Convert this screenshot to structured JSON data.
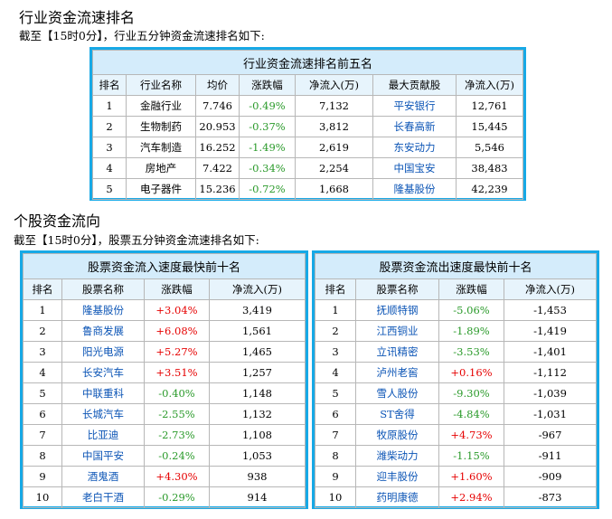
{
  "industry_section": {
    "title": "行业资金流速排名",
    "subtitle": "截至【15时0分】，行业五分钟资金流速排名如下:",
    "table": {
      "caption": "行业资金流速排名前五名",
      "headers": [
        "排名",
        "行业名称",
        "均价",
        "涨跌幅",
        "净流入(万)",
        "最大贡献股",
        "净流入(万)"
      ],
      "rows": [
        {
          "rank": "1",
          "name": "金融行业",
          "price": "7.746",
          "change": "-0.49%",
          "inflow": "7,132",
          "stock": "平安银行",
          "stock_inflow": "12,761"
        },
        {
          "rank": "2",
          "name": "生物制药",
          "price": "20.953",
          "change": "-0.37%",
          "inflow": "3,812",
          "stock": "长春高新",
          "stock_inflow": "15,445"
        },
        {
          "rank": "3",
          "name": "汽车制造",
          "price": "16.252",
          "change": "-1.49%",
          "inflow": "2,619",
          "stock": "东安动力",
          "stock_inflow": "5,546"
        },
        {
          "rank": "4",
          "name": "房地产",
          "price": "7.422",
          "change": "-0.34%",
          "inflow": "2,254",
          "stock": "中国宝安",
          "stock_inflow": "38,483"
        },
        {
          "rank": "5",
          "name": "电子器件",
          "price": "15.236",
          "change": "-0.72%",
          "inflow": "1,668",
          "stock": "隆基股份",
          "stock_inflow": "42,239"
        }
      ]
    }
  },
  "stock_section": {
    "title": "个股资金流向",
    "subtitle": "截至【15时0分】，股票五分钟资金流速排名如下:",
    "inflow_table": {
      "caption": "股票资金流入速度最快前十名",
      "headers": [
        "排名",
        "股票名称",
        "涨跌幅",
        "净流入(万)"
      ],
      "rows": [
        {
          "rank": "1",
          "name": "隆基股份",
          "change": "+3.04%",
          "inflow": "3,419"
        },
        {
          "rank": "2",
          "name": "鲁商发展",
          "change": "+6.08%",
          "inflow": "1,561"
        },
        {
          "rank": "3",
          "name": "阳光电源",
          "change": "+5.27%",
          "inflow": "1,465"
        },
        {
          "rank": "4",
          "name": "长安汽车",
          "change": "+3.51%",
          "inflow": "1,257"
        },
        {
          "rank": "5",
          "name": "中联重科",
          "change": "-0.40%",
          "inflow": "1,148"
        },
        {
          "rank": "6",
          "name": "长城汽车",
          "change": "-2.55%",
          "inflow": "1,132"
        },
        {
          "rank": "7",
          "name": "比亚迪",
          "change": "-2.73%",
          "inflow": "1,108"
        },
        {
          "rank": "8",
          "name": "中国平安",
          "change": "-0.24%",
          "inflow": "1,053"
        },
        {
          "rank": "9",
          "name": "酒鬼酒",
          "change": "+4.30%",
          "inflow": "938"
        },
        {
          "rank": "10",
          "name": "老白干酒",
          "change": "-0.29%",
          "inflow": "914"
        }
      ]
    },
    "outflow_table": {
      "caption": "股票资金流出速度最快前十名",
      "headers": [
        "排名",
        "股票名称",
        "涨跌幅",
        "净流入(万)"
      ],
      "rows": [
        {
          "rank": "1",
          "name": "抚顺特钢",
          "change": "-5.06%",
          "inflow": "-1,453"
        },
        {
          "rank": "2",
          "name": "江西铜业",
          "change": "-1.89%",
          "inflow": "-1,419"
        },
        {
          "rank": "3",
          "name": "立讯精密",
          "change": "-3.53%",
          "inflow": "-1,401"
        },
        {
          "rank": "4",
          "name": "泸州老窖",
          "change": "+0.16%",
          "inflow": "-1,112"
        },
        {
          "rank": "5",
          "name": "雪人股份",
          "change": "-9.30%",
          "inflow": "-1,039"
        },
        {
          "rank": "6",
          "name": "ST舍得",
          "change": "-4.84%",
          "inflow": "-1,031"
        },
        {
          "rank": "7",
          "name": "牧原股份",
          "change": "+4.73%",
          "inflow": "-967"
        },
        {
          "rank": "8",
          "name": "潍柴动力",
          "change": "-1.15%",
          "inflow": "-911"
        },
        {
          "rank": "9",
          "name": "迎丰股份",
          "change": "+1.60%",
          "inflow": "-909"
        },
        {
          "rank": "10",
          "name": "药明康德",
          "change": "+2.94%",
          "inflow": "-873"
        }
      ]
    }
  },
  "colors": {
    "border": "#17a9e6",
    "caption_bg": "#d4ecfb",
    "link": "#0c55b6",
    "up": "#e60000",
    "down": "#2a9a2a"
  }
}
